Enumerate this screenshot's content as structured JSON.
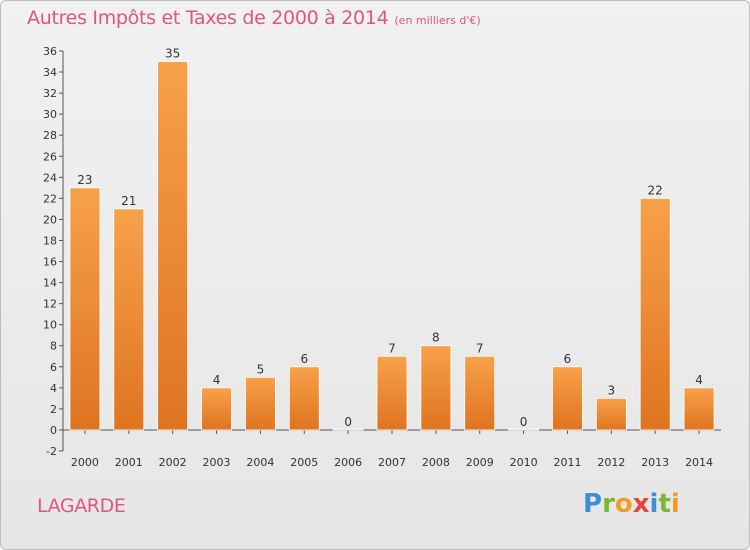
{
  "chart_data": {
    "type": "bar",
    "title": "Autres Impôts et Taxes de 2000 à 2014",
    "subtitle": "(en milliers d'€)",
    "categories": [
      "2000",
      "2001",
      "2002",
      "2003",
      "2004",
      "2005",
      "2006",
      "2007",
      "2008",
      "2009",
      "2010",
      "2011",
      "2012",
      "2013",
      "2014"
    ],
    "values": [
      23,
      21,
      35,
      4,
      5,
      6,
      0,
      7,
      8,
      7,
      0,
      6,
      3,
      22,
      4
    ],
    "ylim": [
      -2,
      36
    ],
    "yticks": [
      -2,
      0,
      2,
      4,
      6,
      8,
      10,
      12,
      14,
      16,
      18,
      20,
      22,
      24,
      26,
      28,
      30,
      32,
      34,
      36
    ],
    "grid": false,
    "bar_color_top": "#f7a14a",
    "bar_color_bottom": "#df7420",
    "title_color": "#e0567c"
  },
  "place": "LAGARDE",
  "logo": {
    "letters": [
      "P",
      "r",
      "o",
      "x",
      "i",
      "t",
      "i"
    ],
    "colors": [
      "#3c8fd6",
      "#7cb82f",
      "#f39c1f",
      "#e8433c",
      "#3c8fd6",
      "#7cb82f",
      "#f39c1f"
    ]
  }
}
